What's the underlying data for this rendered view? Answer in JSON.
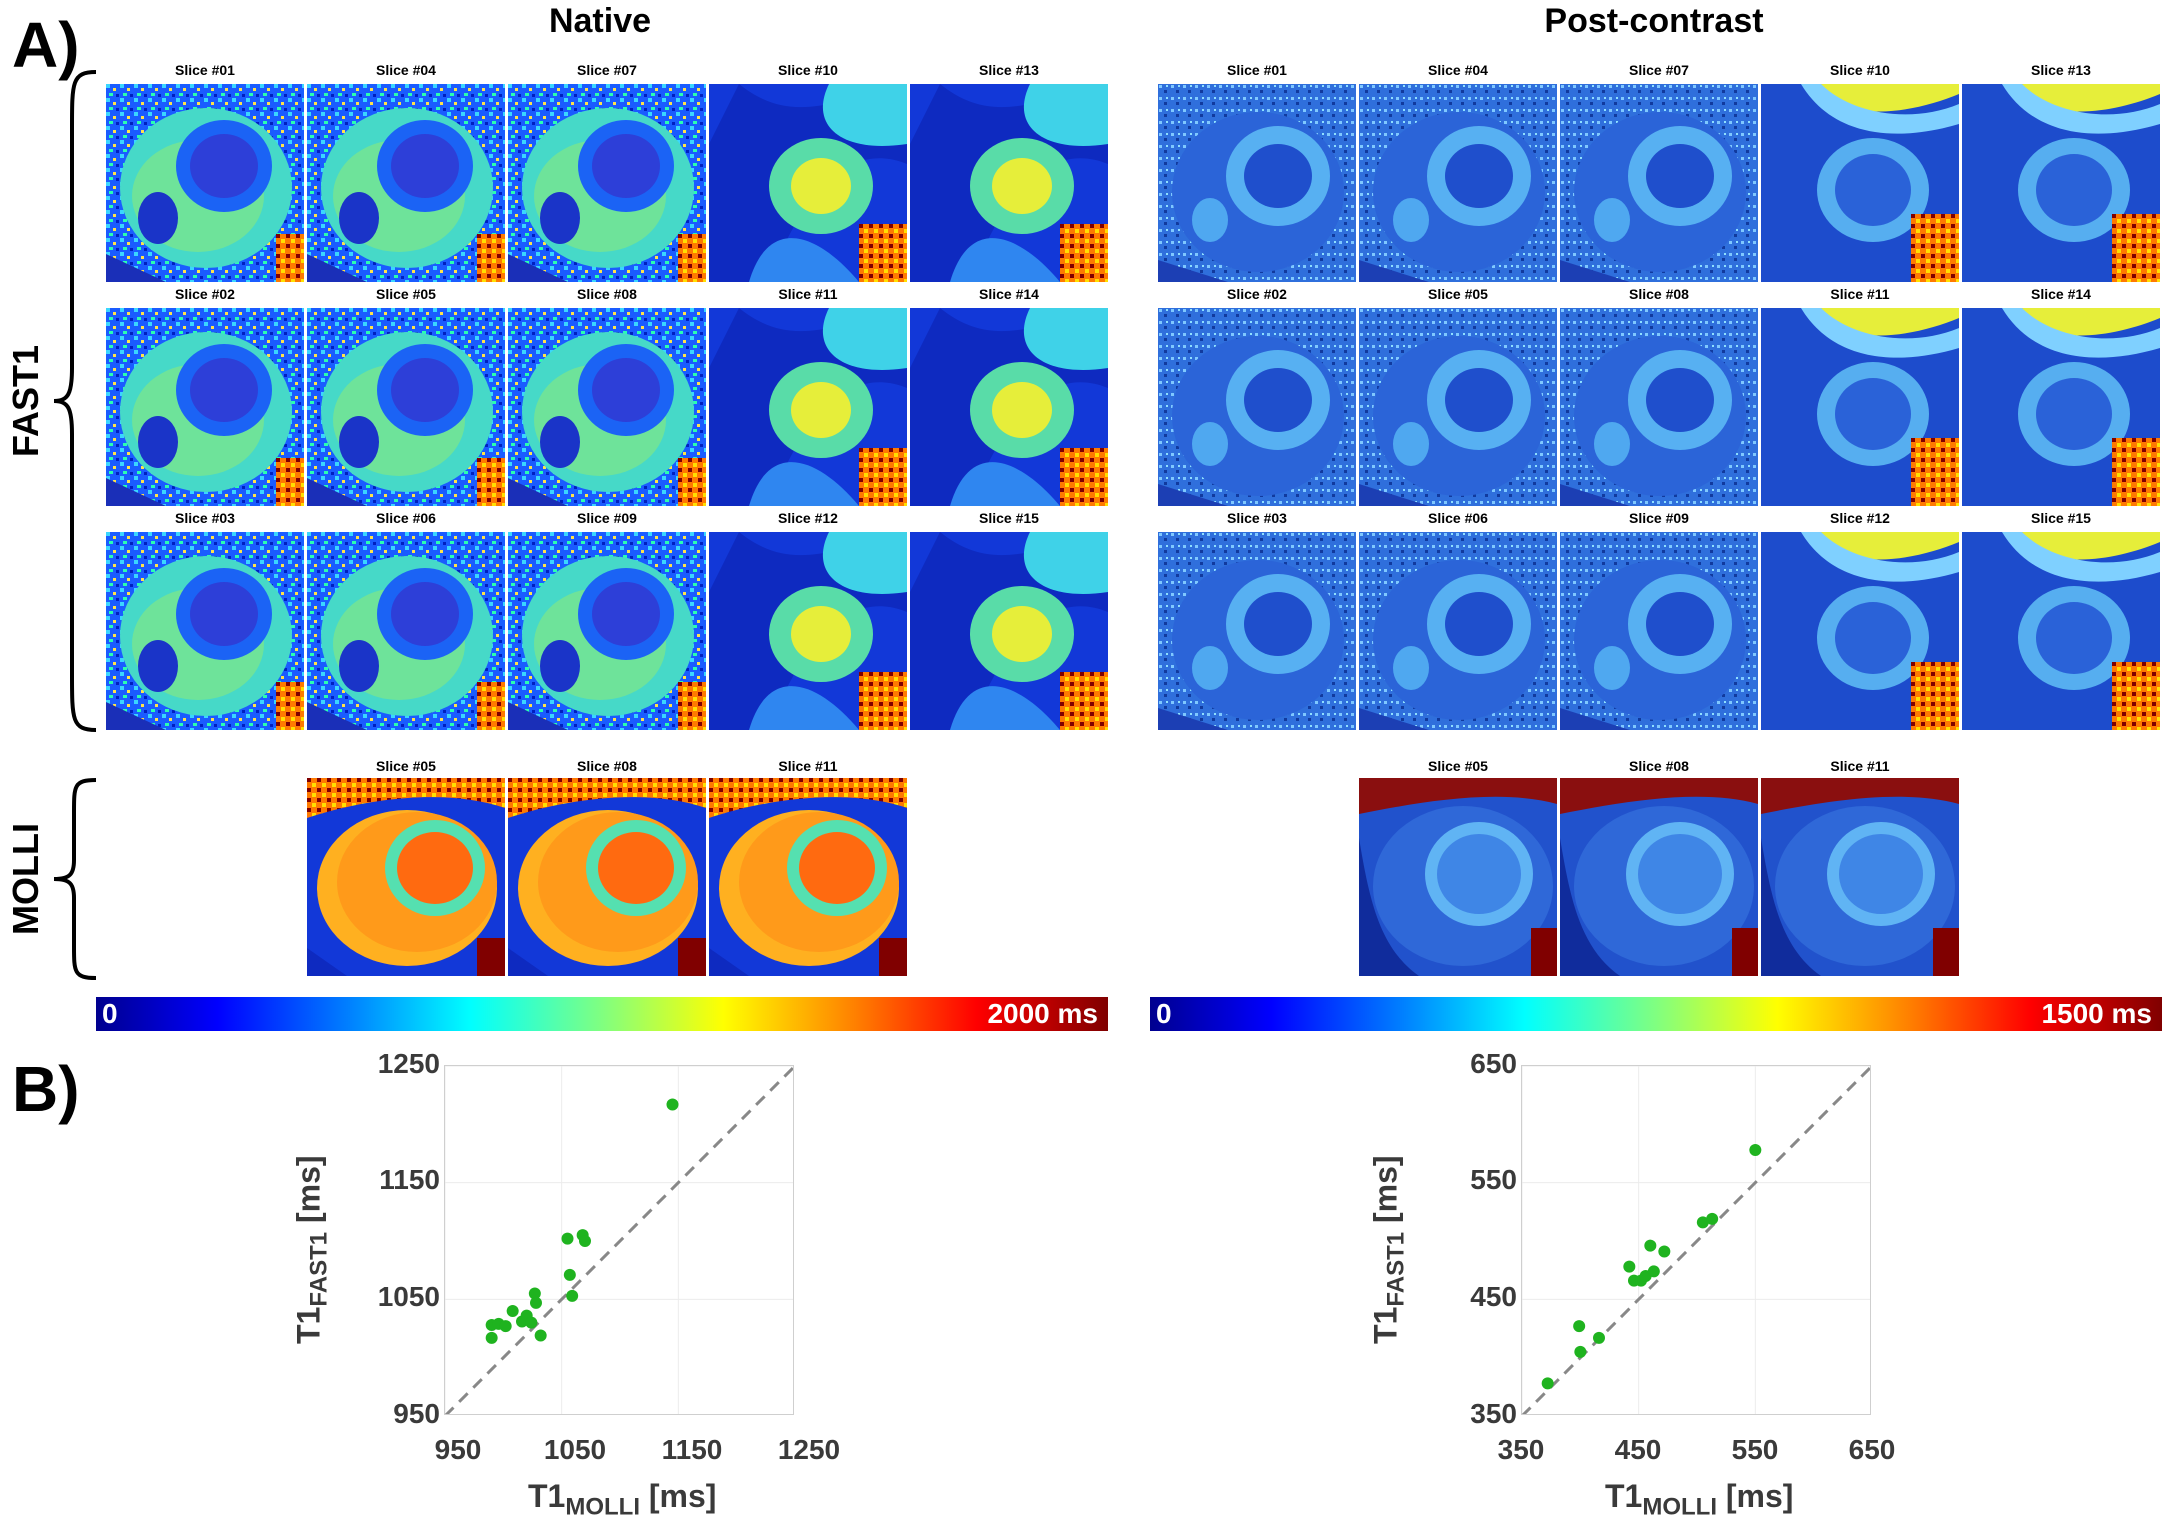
{
  "panel_labels": {
    "a": "A)",
    "b": "B)"
  },
  "columns": {
    "native": "Native",
    "post": "Post-contrast"
  },
  "rows": {
    "fast1": "FAST1",
    "molli": "MOLLI"
  },
  "fast1_slices": [
    [
      "Slice #01",
      "Slice #04",
      "Slice #07",
      "Slice #10",
      "Slice #13"
    ],
    [
      "Slice #02",
      "Slice #05",
      "Slice #08",
      "Slice #11",
      "Slice #14"
    ],
    [
      "Slice #03",
      "Slice #06",
      "Slice #09",
      "Slice #12",
      "Slice #15"
    ]
  ],
  "molli_slices": [
    "Slice #05",
    "Slice #08",
    "Slice #11"
  ],
  "colorbars": {
    "native": {
      "min": "0",
      "max": "2000 ms"
    },
    "post": {
      "min": "0",
      "max": "1500 ms"
    }
  },
  "colors": {
    "jet_dark_blue": "#00008f",
    "jet_dark_red": "#800000",
    "scatter_point": "#1fb31f",
    "identity_line": "#888888"
  },
  "chart_data": [
    {
      "type": "scatter",
      "title": "Native",
      "xlabel_main": "T1",
      "xlabel_sub": "MOLLI",
      "xlabel_unit": "[ms]",
      "ylabel_main": "T1",
      "ylabel_sub": "FAST1",
      "ylabel_unit": "[ms]",
      "xlim": [
        950,
        1250
      ],
      "ylim": [
        950,
        1250
      ],
      "xticks": [
        "950",
        "1050",
        "1150",
        "1250"
      ],
      "yticks": [
        "950",
        "1050",
        "1150",
        "1250"
      ],
      "x": [
        1145,
        990,
        996,
        1002,
        1008,
        1016,
        1020,
        1024,
        1027,
        1028,
        1032,
        1055,
        1057,
        1059,
        1068,
        1070,
        990
      ],
      "y": [
        1217,
        1028,
        1029,
        1027,
        1040,
        1031,
        1036,
        1030,
        1055,
        1047,
        1019,
        1102,
        1071,
        1053,
        1105,
        1100,
        1017
      ],
      "reference_line": "identity"
    },
    {
      "type": "scatter",
      "title": "Post-contrast",
      "xlabel_main": "T1",
      "xlabel_sub": "MOLLI",
      "xlabel_unit": "[ms]",
      "ylabel_main": "T1",
      "ylabel_sub": "FAST1",
      "ylabel_unit": "[ms]",
      "xlim": [
        350,
        650
      ],
      "ylim": [
        350,
        650
      ],
      "xticks": [
        "350",
        "450",
        "550",
        "650"
      ],
      "yticks": [
        "350",
        "450",
        "550",
        "650"
      ],
      "x": [
        372,
        399,
        400,
        416,
        442,
        446,
        452,
        456,
        460,
        463,
        472,
        505,
        513,
        550
      ],
      "y": [
        378,
        427,
        405,
        417,
        478,
        466,
        466,
        470,
        496,
        474,
        491,
        516,
        519,
        578
      ],
      "reference_line": "identity"
    }
  ]
}
